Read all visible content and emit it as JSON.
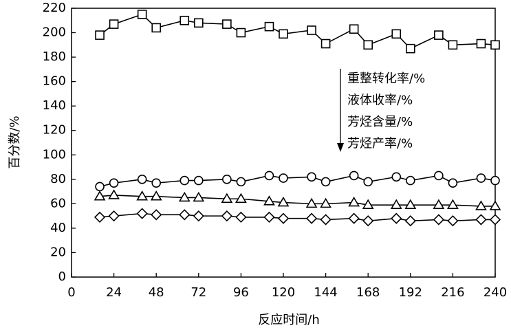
{
  "chart_data": {
    "type": "line",
    "x_label": "反应时间/h",
    "y_label": "百分数/%",
    "x": [
      16,
      24,
      40,
      48,
      64,
      72,
      88,
      96,
      112,
      120,
      136,
      144,
      160,
      168,
      184,
      192,
      208,
      216,
      232,
      240
    ],
    "series": [
      {
        "name": "重整转化率/%",
        "color": "#000000",
        "marker": "square",
        "values": [
          198,
          207,
          215,
          204,
          210,
          208,
          207,
          200,
          205,
          199,
          202,
          191,
          203,
          190,
          199,
          187,
          198,
          190,
          191,
          190
        ]
      },
      {
        "name": "液体收率/%",
        "color": "#000000",
        "marker": "circle",
        "values": [
          74,
          77,
          80,
          77,
          79,
          79,
          80,
          78,
          83,
          81,
          82,
          78,
          83,
          78,
          82,
          79,
          83,
          77,
          81,
          79
        ]
      },
      {
        "name": "芳烃含量/%",
        "color": "#000000",
        "marker": "triangle",
        "values": [
          66,
          67,
          66,
          66,
          65,
          65,
          64,
          64,
          62,
          61,
          60,
          60,
          61,
          59,
          59,
          59,
          59,
          59,
          58,
          58
        ]
      },
      {
        "name": "芳烃产率/%",
        "color": "#000000",
        "marker": "diamond",
        "values": [
          49,
          50,
          52,
          51,
          51,
          50,
          50,
          49,
          49,
          48,
          48,
          47,
          48,
          46,
          48,
          46,
          47,
          46,
          47,
          47
        ]
      }
    ],
    "xlim": [
      0,
      240
    ],
    "xticks": [
      0,
      24,
      48,
      72,
      96,
      120,
      144,
      168,
      192,
      216,
      240
    ],
    "ylim": [
      0,
      220
    ],
    "yticks": [
      0,
      20,
      40,
      60,
      80,
      100,
      120,
      140,
      160,
      180,
      200,
      220
    ],
    "grid": false
  }
}
